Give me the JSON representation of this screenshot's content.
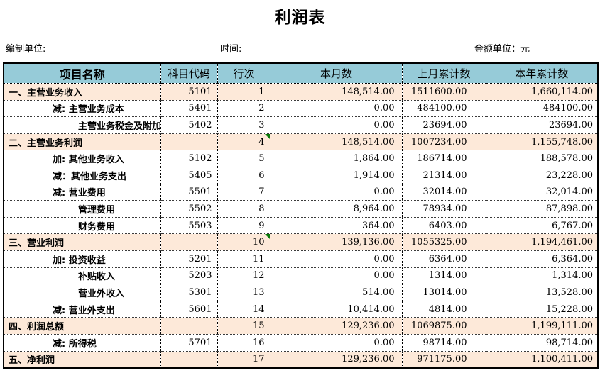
{
  "title": "利润表",
  "meta": {
    "prepared_by_label": "编制单位:",
    "time_label": "时间:",
    "unit_label": "金额单位：元"
  },
  "colors": {
    "header_bg": "#96CBD8",
    "section_row_bg": "#FDE9D9",
    "flag_green": "#0A7A0A",
    "border": "#000000"
  },
  "table": {
    "columns": [
      "项目名称",
      "科目代码",
      "行次",
      "本月数",
      "上月累计数",
      "本年累计数"
    ],
    "rows": [
      {
        "name": "一、主营业务收入",
        "indent": 0,
        "section": true,
        "flag": false,
        "code": "5101",
        "line": "1",
        "month": "148,514.00",
        "prev": "1511600.00",
        "year": "1,660,114.00"
      },
      {
        "name": "减: 主营业务成本",
        "indent": 1,
        "section": false,
        "flag": false,
        "code": "5401",
        "line": "2",
        "month": "0.00",
        "prev": "484100.00",
        "year": "484100.00"
      },
      {
        "name": "主营业务税金及附加",
        "indent": 2,
        "section": false,
        "flag": false,
        "code": "5402",
        "line": "3",
        "month": "0.00",
        "prev": "23694.00",
        "year": "23694.00"
      },
      {
        "name": "二、主营业务利润",
        "indent": 0,
        "section": true,
        "flag": true,
        "code": "",
        "line": "4",
        "month": "148,514.00",
        "prev": "1007234.00",
        "year": "1,155,748.00"
      },
      {
        "name": "加: 其他业务收入",
        "indent": 1,
        "section": false,
        "flag": false,
        "code": "5102",
        "line": "5",
        "month": "1,864.00",
        "prev": "186714.00",
        "year": "188,578.00"
      },
      {
        "name": "减：其他业务支出",
        "indent": 1,
        "section": false,
        "flag": false,
        "code": "5405",
        "line": "6",
        "month": "1,914.00",
        "prev": "21314.00",
        "year": "23,228.00"
      },
      {
        "name": "减: 营业费用",
        "indent": 1,
        "section": false,
        "flag": false,
        "code": "5501",
        "line": "7",
        "month": "0.00",
        "prev": "32014.00",
        "year": "32,014.00"
      },
      {
        "name": "管理费用",
        "indent": 2,
        "section": false,
        "flag": false,
        "code": "5502",
        "line": "8",
        "month": "8,964.00",
        "prev": "78934.00",
        "year": "87,898.00"
      },
      {
        "name": "财务费用",
        "indent": 2,
        "section": false,
        "flag": false,
        "code": "5503",
        "line": "9",
        "month": "364.00",
        "prev": "6403.00",
        "year": "6,767.00"
      },
      {
        "name": "三、营业利润",
        "indent": 0,
        "section": true,
        "flag": true,
        "code": "",
        "line": "10",
        "month": "139,136.00",
        "prev": "1055325.00",
        "year": "1,194,461.00"
      },
      {
        "name": "加: 投资收益",
        "indent": 1,
        "section": false,
        "flag": false,
        "code": "5201",
        "line": "11",
        "month": "0.00",
        "prev": "6364.00",
        "year": "6,364.00"
      },
      {
        "name": "补贴收入",
        "indent": 2,
        "section": false,
        "flag": false,
        "code": "5203",
        "line": "12",
        "month": "0.00",
        "prev": "1314.00",
        "year": "1,314.00"
      },
      {
        "name": "营业外收入",
        "indent": 2,
        "section": false,
        "flag": false,
        "code": "5301",
        "line": "13",
        "month": "514.00",
        "prev": "13014.00",
        "year": "13,528.00"
      },
      {
        "name": "减: 营业外支出",
        "indent": 1,
        "section": false,
        "flag": false,
        "code": "5601",
        "line": "14",
        "month": "10,414.00",
        "prev": "4814.00",
        "year": "15,228.00"
      },
      {
        "name": "四、利润总额",
        "indent": 0,
        "section": true,
        "flag": false,
        "code": "",
        "line": "15",
        "month": "129,236.00",
        "prev": "1069875.00",
        "year": "1,199,111.00"
      },
      {
        "name": "减: 所得税",
        "indent": 1,
        "section": false,
        "flag": false,
        "code": "5701",
        "line": "16",
        "month": "0.00",
        "prev": "98714.00",
        "year": "98,714.00"
      },
      {
        "name": "五、净利润",
        "indent": 0,
        "section": true,
        "flag": false,
        "code": "",
        "line": "17",
        "month": "129,236.00",
        "prev": "971175.00",
        "year": "1,100,411.00"
      }
    ]
  }
}
